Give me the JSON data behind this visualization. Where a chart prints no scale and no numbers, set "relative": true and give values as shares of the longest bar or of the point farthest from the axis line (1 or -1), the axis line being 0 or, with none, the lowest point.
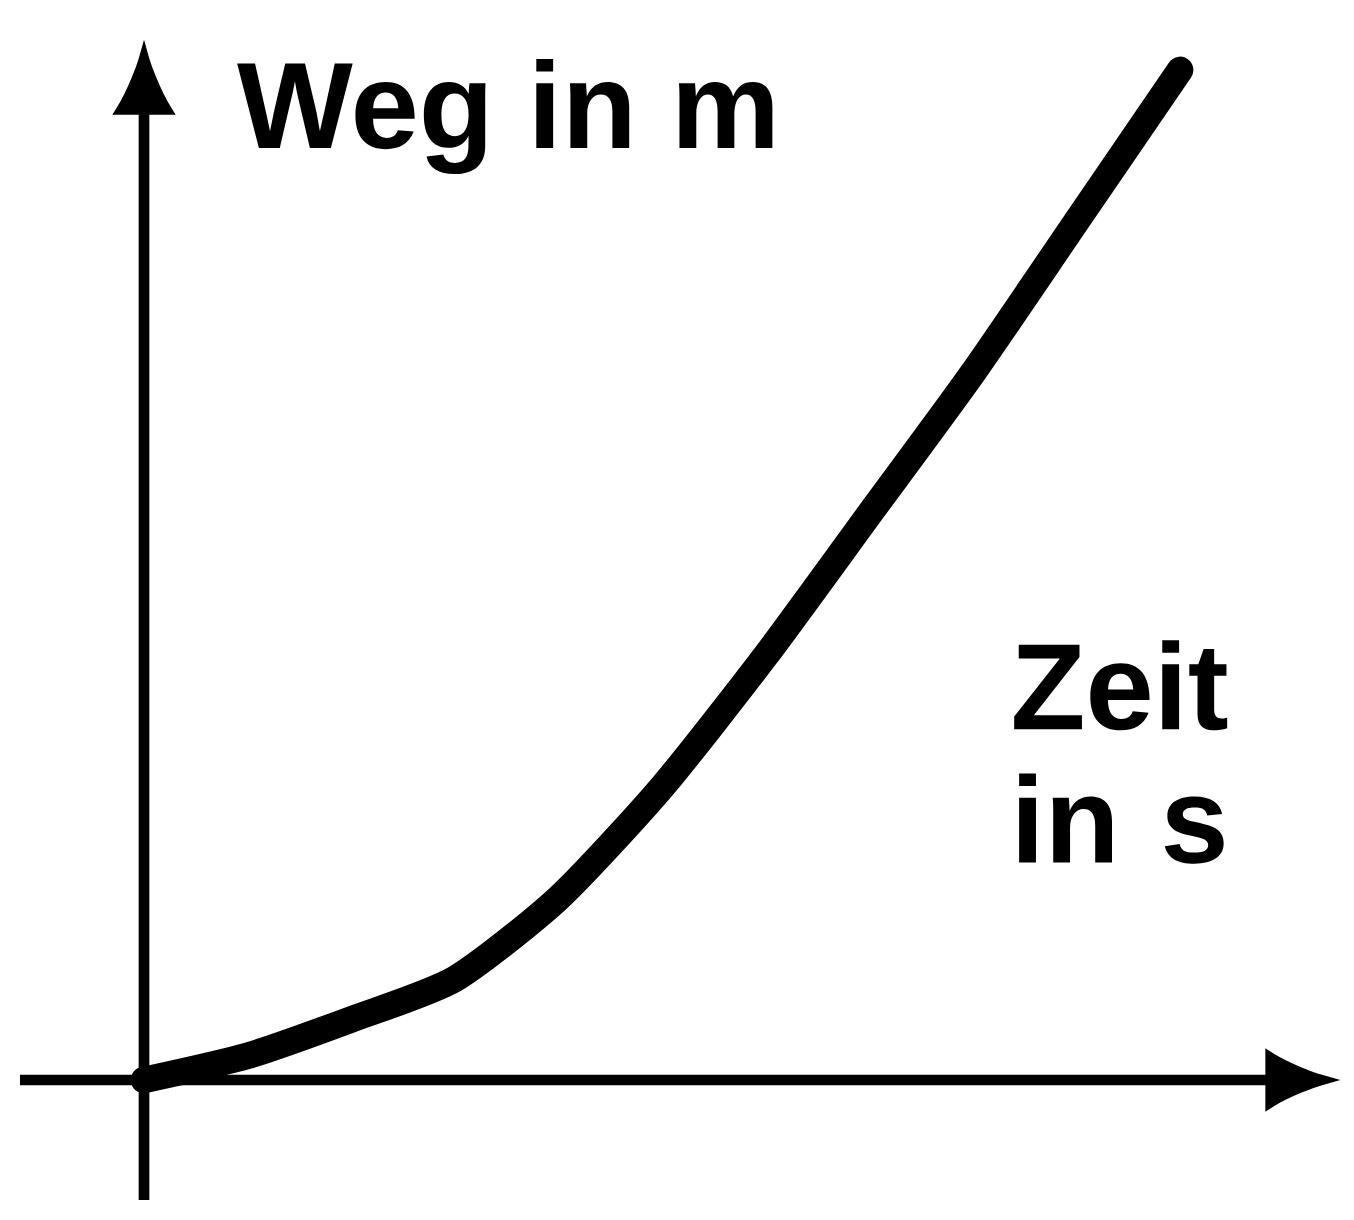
{
  "chart_data": {
    "type": "line",
    "relative": true,
    "xlabel": "Zeit in s",
    "ylabel": "Weg in m",
    "color": "#000000",
    "categories": [
      null,
      null,
      null,
      null,
      null,
      null,
      null,
      null,
      null,
      null,
      null
    ],
    "values": [
      0,
      0.024,
      0.06,
      0.1,
      0.18,
      0.29,
      0.42,
      0.56,
      0.7,
      0.85,
      1.0
    ]
  }
}
